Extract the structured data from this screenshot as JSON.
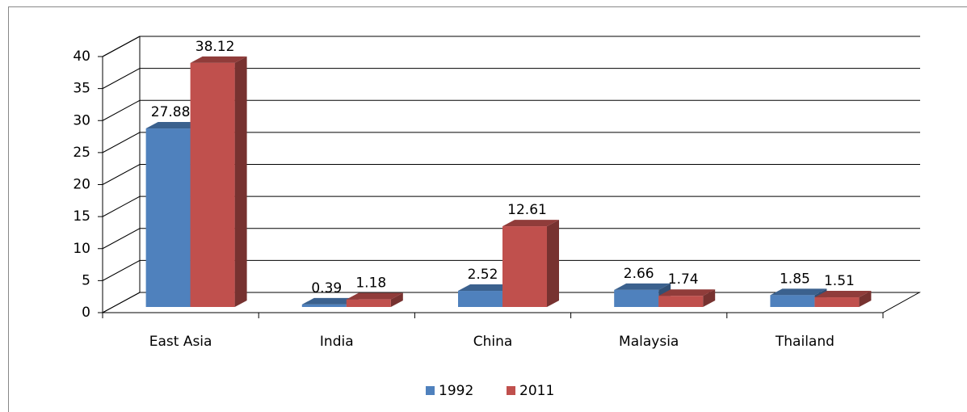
{
  "chart_data": {
    "type": "bar",
    "categories": [
      "East Asia",
      "India",
      "China",
      "Malaysia",
      "Thailand"
    ],
    "series": [
      {
        "name": "1992",
        "color": "#4f81bd",
        "values": [
          27.88,
          0.39,
          2.52,
          2.66,
          1.85
        ]
      },
      {
        "name": "2011",
        "color": "#c0504d",
        "values": [
          38.12,
          1.18,
          12.61,
          1.74,
          1.51
        ]
      }
    ],
    "ylim": [
      0,
      40
    ],
    "yticks": [
      0,
      5,
      10,
      15,
      20,
      25,
      30,
      35,
      40
    ],
    "grid": true,
    "legend": "bottom"
  }
}
